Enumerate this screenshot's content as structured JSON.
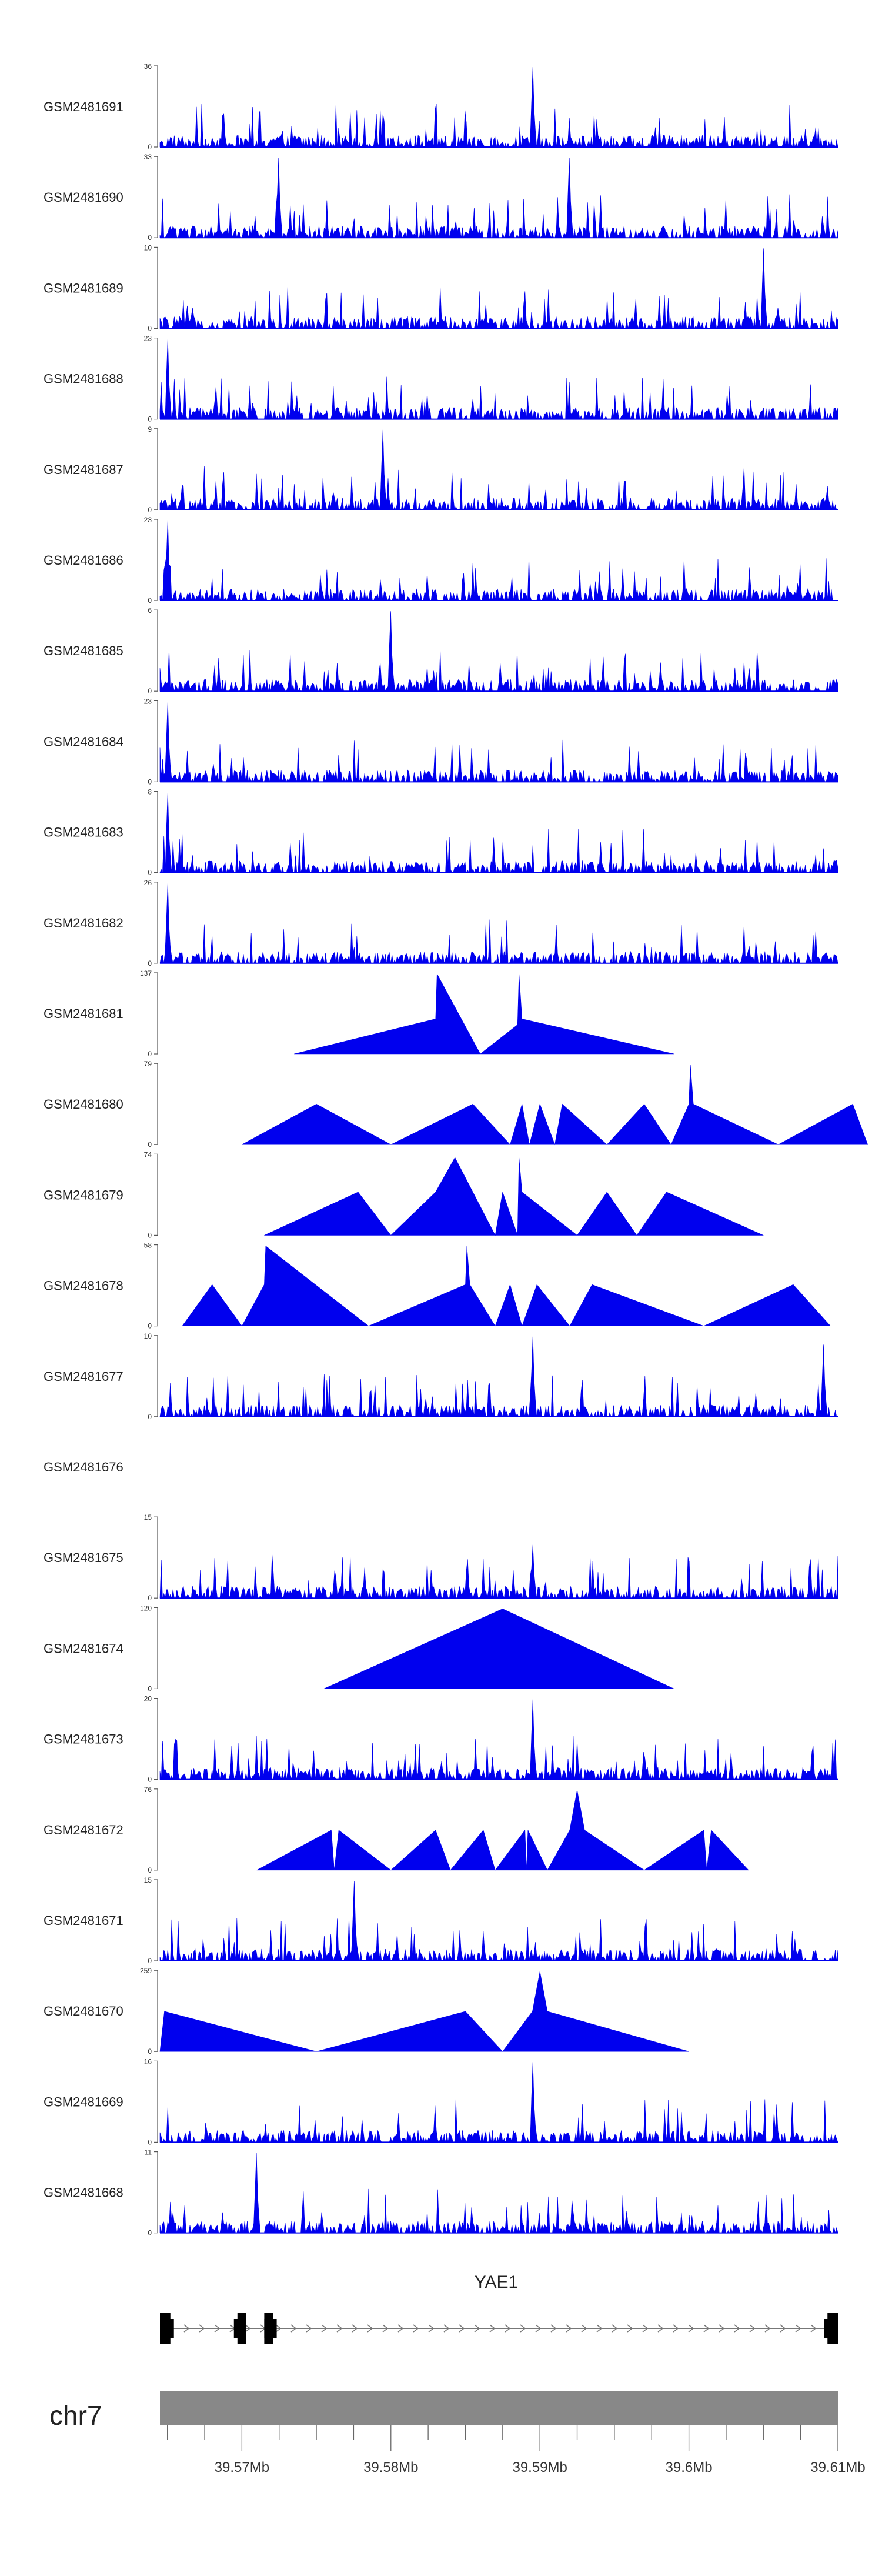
{
  "chart_data": {
    "type": "area",
    "title": "",
    "region": {
      "chromosome": "chr7",
      "xlim": [
        39.5645,
        39.61
      ],
      "x_ticks": [
        39.57,
        39.58,
        39.59,
        39.6,
        39.61
      ],
      "x_tick_labels": [
        "39.57Mb",
        "39.58Mb",
        "39.59Mb",
        "39.6Mb",
        "39.61Mb"
      ]
    },
    "gene": {
      "name": "YAE1",
      "start": 39.5645,
      "end": 39.61,
      "exons": [
        [
          39.5645,
          39.5652
        ],
        [
          39.5697,
          39.5703
        ],
        [
          39.5715,
          39.5721
        ],
        [
          39.6093,
          39.61
        ]
      ]
    },
    "tracks": [
      {
        "name": "GSM2481691",
        "ymax": 36,
        "style": "dense",
        "peaks": [
          [
            39.5895,
            36
          ]
        ]
      },
      {
        "name": "GSM2481690",
        "ymax": 33,
        "style": "dense",
        "peaks": [
          [
            39.5725,
            33
          ],
          [
            39.592,
            33
          ]
        ]
      },
      {
        "name": "GSM2481689",
        "ymax": 10,
        "style": "dense",
        "peaks": [
          [
            39.605,
            10
          ]
        ]
      },
      {
        "name": "GSM2481688",
        "ymax": 23,
        "style": "dense",
        "peaks": [
          [
            39.565,
            23
          ]
        ]
      },
      {
        "name": "GSM2481687",
        "ymax": 9,
        "style": "dense",
        "peaks": [
          [
            39.5795,
            9
          ]
        ]
      },
      {
        "name": "GSM2481686",
        "ymax": 23,
        "style": "dense",
        "peaks": [
          [
            39.565,
            23
          ]
        ]
      },
      {
        "name": "GSM2481685",
        "ymax": 6,
        "style": "dense",
        "peaks": [
          [
            39.58,
            6
          ]
        ]
      },
      {
        "name": "GSM2481684",
        "ymax": 23,
        "style": "dense",
        "peaks": [
          [
            39.565,
            23
          ]
        ]
      },
      {
        "name": "GSM2481683",
        "ymax": 8,
        "style": "dense",
        "peaks": [
          [
            39.565,
            8
          ]
        ]
      },
      {
        "name": "GSM2481682",
        "ymax": 26,
        "style": "dense",
        "peaks": [
          [
            39.565,
            26
          ]
        ]
      },
      {
        "name": "GSM2481681",
        "ymax": 137,
        "style": "sparse",
        "points": [
          [
            39.5735,
            0
          ],
          [
            39.583,
            60
          ],
          [
            39.5831,
            137
          ],
          [
            39.586,
            0
          ],
          [
            39.5885,
            50
          ],
          [
            39.5886,
            137
          ],
          [
            39.5888,
            60
          ],
          [
            39.599,
            0
          ]
        ]
      },
      {
        "name": "GSM2481680",
        "ymax": 79,
        "style": "sparse",
        "points": [
          [
            39.57,
            0
          ],
          [
            39.575,
            40
          ],
          [
            39.58,
            0
          ],
          [
            39.5855,
            40
          ],
          [
            39.588,
            0
          ],
          [
            39.5888,
            40
          ],
          [
            39.5893,
            0
          ],
          [
            39.59,
            40
          ],
          [
            39.591,
            0
          ],
          [
            39.5915,
            40
          ],
          [
            39.5945,
            0
          ],
          [
            39.597,
            40
          ],
          [
            39.5988,
            0
          ],
          [
            39.6,
            40
          ],
          [
            39.6001,
            79
          ],
          [
            39.6003,
            40
          ],
          [
            39.606,
            0
          ],
          [
            39.611,
            40
          ],
          [
            39.612,
            0
          ]
        ]
      },
      {
        "name": "GSM2481679",
        "ymax": 74,
        "style": "sparse",
        "points": [
          [
            39.5715,
            0
          ],
          [
            39.5778,
            40
          ],
          [
            39.58,
            0
          ],
          [
            39.583,
            40
          ],
          [
            39.5843,
            72
          ],
          [
            39.587,
            0
          ],
          [
            39.5875,
            40
          ],
          [
            39.5885,
            0
          ],
          [
            39.5886,
            72
          ],
          [
            39.5888,
            40
          ],
          [
            39.5925,
            0
          ],
          [
            39.5945,
            40
          ],
          [
            39.5965,
            0
          ],
          [
            39.5985,
            40
          ],
          [
            39.605,
            0
          ]
        ]
      },
      {
        "name": "GSM2481678",
        "ymax": 58,
        "style": "sparse",
        "points": [
          [
            39.566,
            0
          ],
          [
            39.568,
            30
          ],
          [
            39.57,
            0
          ],
          [
            39.5715,
            30
          ],
          [
            39.5716,
            58
          ],
          [
            39.5785,
            0
          ],
          [
            39.585,
            30
          ],
          [
            39.5851,
            58
          ],
          [
            39.5853,
            30
          ],
          [
            39.587,
            0
          ],
          [
            39.588,
            30
          ],
          [
            39.5888,
            0
          ],
          [
            39.5898,
            30
          ],
          [
            39.592,
            0
          ],
          [
            39.5935,
            30
          ],
          [
            39.601,
            0
          ],
          [
            39.607,
            30
          ],
          [
            39.6095,
            0
          ]
        ]
      },
      {
        "name": "GSM2481677",
        "ymax": 10,
        "style": "dense",
        "peaks": [
          [
            39.5895,
            10
          ],
          [
            39.609,
            9
          ]
        ]
      },
      {
        "name": "GSM2481676",
        "ymax": null,
        "style": "empty"
      },
      {
        "name": "GSM2481675",
        "ymax": 15,
        "style": "dense",
        "peaks": [
          [
            39.5895,
            10
          ]
        ]
      },
      {
        "name": "GSM2481674",
        "ymax": 120,
        "style": "sparse",
        "points": [
          [
            39.5755,
            0
          ],
          [
            39.5875,
            120
          ],
          [
            39.599,
            0
          ]
        ]
      },
      {
        "name": "GSM2481673",
        "ymax": 20,
        "style": "dense",
        "peaks": [
          [
            39.5895,
            20
          ]
        ]
      },
      {
        "name": "GSM2481672",
        "ymax": 76,
        "style": "sparse",
        "points": [
          [
            39.571,
            0
          ],
          [
            39.576,
            38
          ],
          [
            39.5762,
            0
          ],
          [
            39.5765,
            38
          ],
          [
            39.58,
            0
          ],
          [
            39.583,
            38
          ],
          [
            39.584,
            0
          ],
          [
            39.5862,
            38
          ],
          [
            39.587,
            0
          ],
          [
            39.589,
            38
          ],
          [
            39.5891,
            0
          ],
          [
            39.5892,
            38
          ],
          [
            39.5905,
            0
          ],
          [
            39.592,
            38
          ],
          [
            39.5925,
            76
          ],
          [
            39.593,
            38
          ],
          [
            39.597,
            0
          ],
          [
            39.601,
            38
          ],
          [
            39.6012,
            0
          ],
          [
            39.6015,
            38
          ],
          [
            39.604,
            0
          ]
        ]
      },
      {
        "name": "GSM2481671",
        "ymax": 15,
        "style": "dense",
        "peaks": [
          [
            39.5775,
            15
          ]
        ]
      },
      {
        "name": "GSM2481670",
        "ymax": 259,
        "style": "sparse",
        "points": [
          [
            39.5645,
            0
          ],
          [
            39.5648,
            130
          ],
          [
            39.575,
            0
          ],
          [
            39.585,
            130
          ],
          [
            39.5875,
            0
          ],
          [
            39.5895,
            130
          ],
          [
            39.59,
            259
          ],
          [
            39.5905,
            130
          ],
          [
            39.6,
            0
          ]
        ]
      },
      {
        "name": "GSM2481669",
        "ymax": 16,
        "style": "dense",
        "peaks": [
          [
            39.5895,
            16
          ]
        ]
      },
      {
        "name": "GSM2481668",
        "ymax": 11,
        "style": "dense",
        "peaks": [
          [
            39.571,
            11
          ]
        ]
      }
    ],
    "colors": {
      "signal": "#0000ee",
      "axis": "#555555",
      "chrom_bar": "#888888",
      "gene": "#000000",
      "intron": "#777777"
    }
  }
}
